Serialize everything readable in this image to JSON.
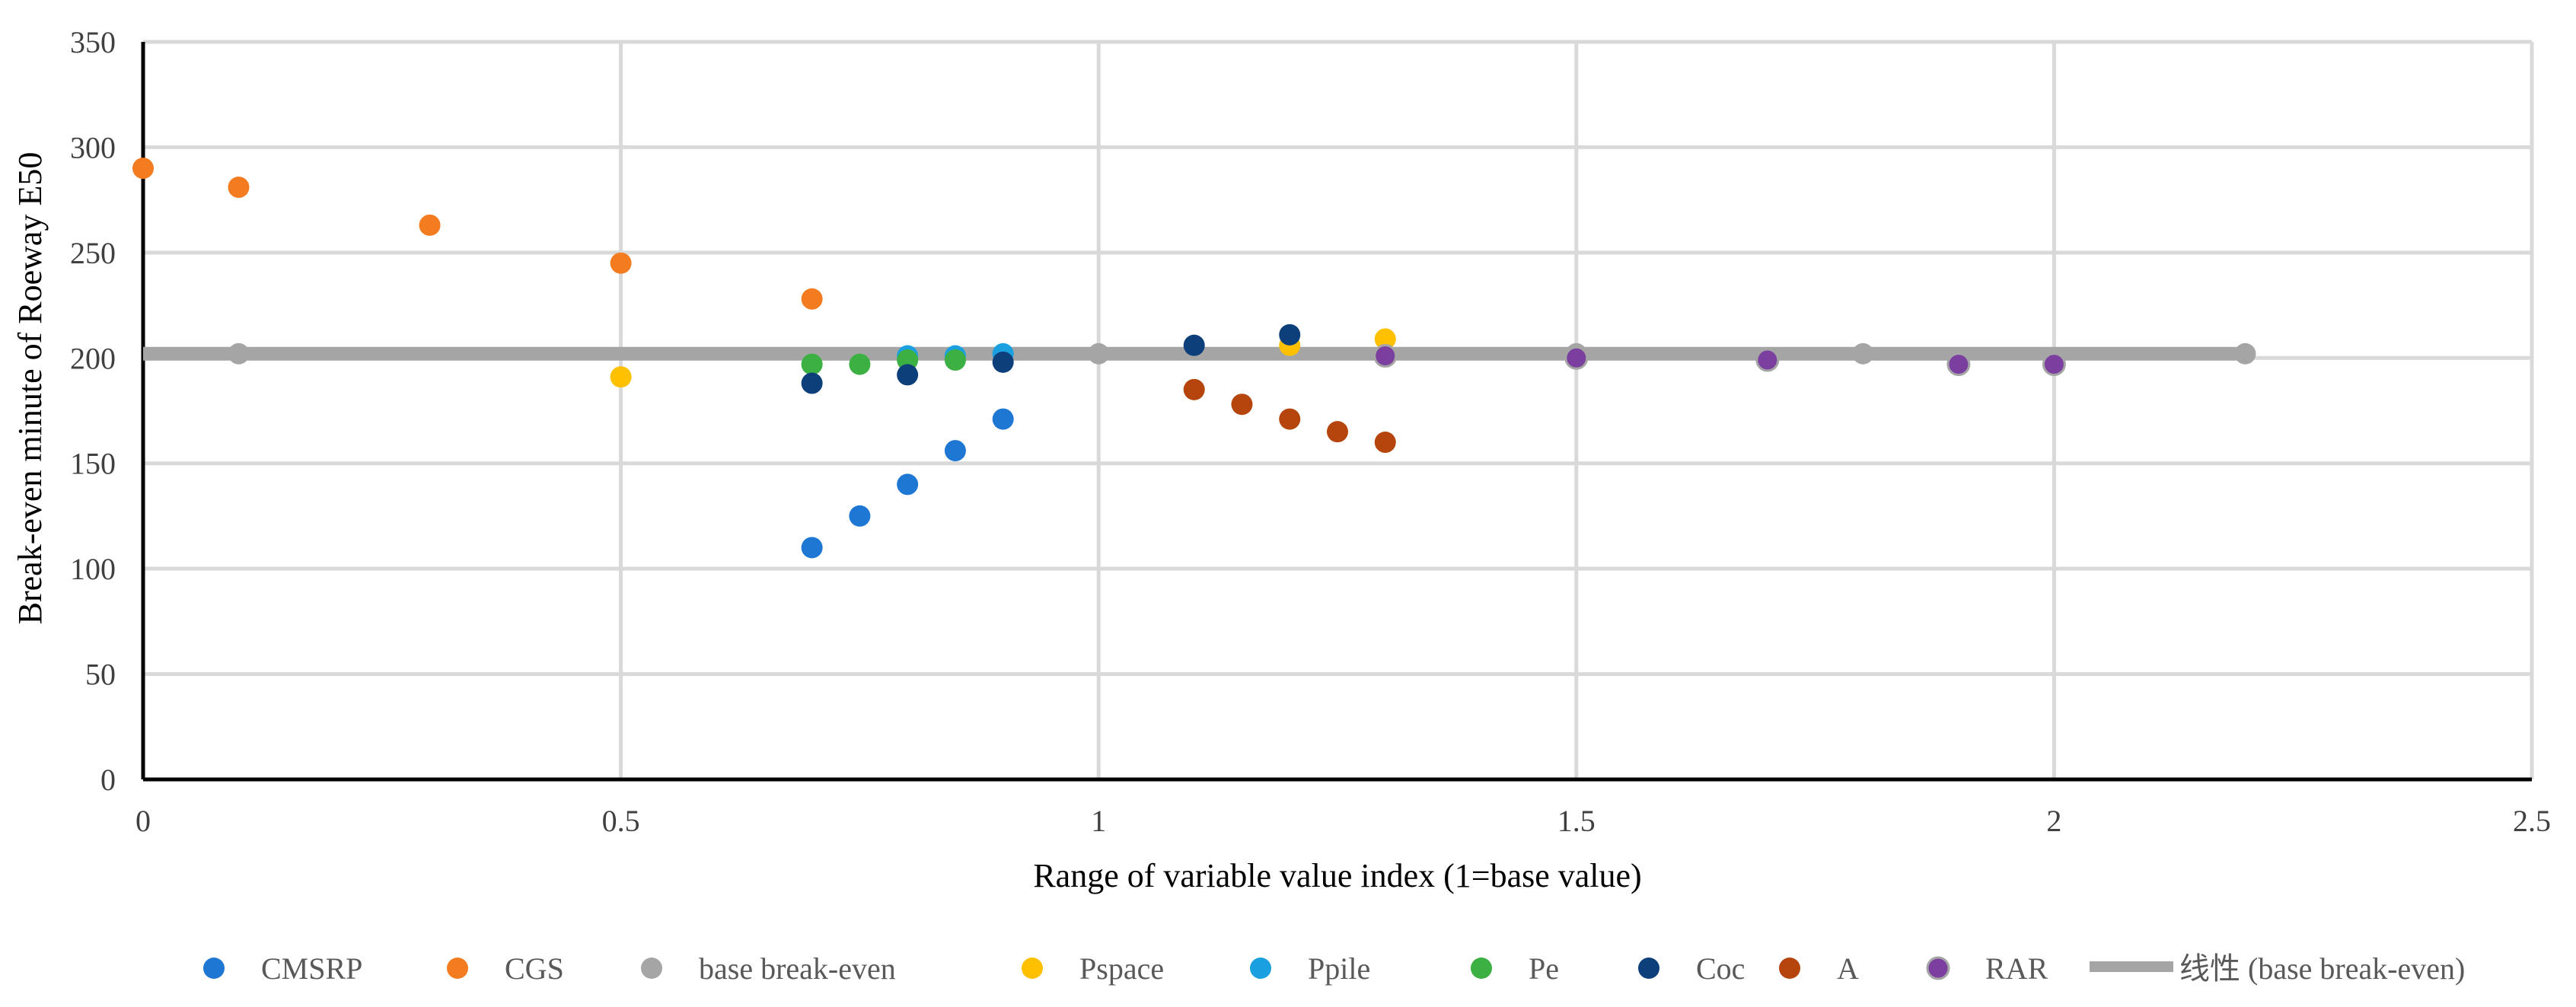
{
  "chart_data": {
    "type": "scatter",
    "title": "",
    "xlabel": "Range of variable value index (1=base value)",
    "ylabel": "Break-even minute  of Roeway E50",
    "xlim": [
      0,
      2.5
    ],
    "ylim": [
      0,
      350
    ],
    "x_ticks": [
      0,
      0.5,
      1,
      1.5,
      2,
      2.5
    ],
    "x_tick_labels": [
      "0",
      "0.5",
      "1",
      "1.5",
      "2",
      "2.5"
    ],
    "y_ticks": [
      0,
      50,
      100,
      150,
      200,
      250,
      300,
      350
    ],
    "y_tick_labels": [
      "0",
      "50",
      "100",
      "150",
      "200",
      "250",
      "300",
      "350"
    ],
    "grid": true,
    "legend_position": "bottom",
    "series": [
      {
        "name": "CMSRP",
        "color": "#1f77d4",
        "points": [
          [
            0.7,
            110
          ],
          [
            0.75,
            125
          ],
          [
            0.8,
            140
          ],
          [
            0.85,
            156
          ],
          [
            0.9,
            171
          ]
        ]
      },
      {
        "name": "CGS",
        "color": "#f47c20",
        "points": [
          [
            0,
            290
          ],
          [
            0.1,
            281
          ],
          [
            0.3,
            263
          ],
          [
            0.5,
            245
          ],
          [
            0.7,
            228
          ]
        ]
      },
      {
        "name": "base break-even",
        "color": "#a5a5a5",
        "points": [
          [
            0.1,
            202
          ],
          [
            1,
            202
          ],
          [
            1.5,
            202
          ],
          [
            1.8,
            202
          ],
          [
            2.2,
            202
          ]
        ]
      },
      {
        "name": "Pspace",
        "color": "#ffc000",
        "points": [
          [
            0.5,
            191
          ],
          [
            1.2,
            206
          ],
          [
            1.3,
            209
          ]
        ]
      },
      {
        "name": "Ppile",
        "color": "#1aa0e0",
        "points": [
          [
            0.8,
            201
          ],
          [
            0.85,
            201
          ],
          [
            0.9,
            202
          ]
        ]
      },
      {
        "name": "Pe",
        "color": "#3cb043",
        "points": [
          [
            0.7,
            197
          ],
          [
            0.75,
            197
          ],
          [
            0.8,
            199
          ],
          [
            0.85,
            199
          ]
        ]
      },
      {
        "name": "Coc",
        "color": "#0d3f7a",
        "points": [
          [
            0.7,
            188
          ],
          [
            0.8,
            192
          ],
          [
            0.9,
            198
          ],
          [
            1.1,
            206
          ],
          [
            1.2,
            211
          ]
        ]
      },
      {
        "name": "A",
        "color": "#b6450d",
        "points": [
          [
            1.1,
            185
          ],
          [
            1.15,
            178
          ],
          [
            1.2,
            171
          ],
          [
            1.25,
            165
          ],
          [
            1.3,
            160
          ]
        ]
      },
      {
        "name": "RAR",
        "color": "#7b3fa0",
        "points": [
          [
            1.3,
            201
          ],
          [
            1.5,
            200
          ],
          [
            1.7,
            199
          ],
          [
            1.9,
            197
          ],
          [
            2,
            197
          ]
        ]
      }
    ],
    "trendline": {
      "name": "线性 (base break-even)",
      "color": "#a5a5a5",
      "x": [
        0,
        2.2
      ],
      "y": [
        202,
        202
      ]
    }
  }
}
